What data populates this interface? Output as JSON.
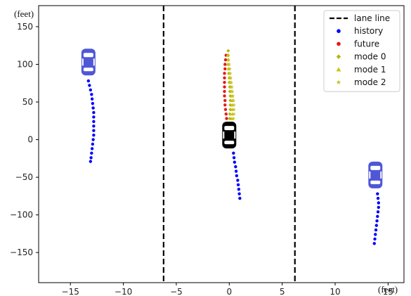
{
  "chart_data": {
    "type": "scatter",
    "units": {
      "x": "(feet)",
      "y": "(feet)"
    },
    "xlim": [
      -18,
      16.5
    ],
    "ylim": [
      -190,
      178
    ],
    "x_ticks": [
      -15,
      -10,
      -5,
      0,
      5,
      10,
      15
    ],
    "y_ticks": [
      -150,
      -100,
      -50,
      0,
      50,
      100,
      150
    ],
    "grid": false,
    "legend_position": "top-right",
    "lane_lines": {
      "name": "lane line",
      "x": [
        -6.2,
        6.2
      ],
      "color": "#000000"
    },
    "series": [
      {
        "name": "history",
        "marker": "circle",
        "color": "#0000ff",
        "points": [
          {
            "x": -13.3,
            "y": 78
          },
          {
            "x": -13.2,
            "y": 72
          },
          {
            "x": -13.1,
            "y": 66
          },
          {
            "x": -13.0,
            "y": 60
          },
          {
            "x": -12.95,
            "y": 54
          },
          {
            "x": -12.9,
            "y": 48
          },
          {
            "x": -12.85,
            "y": 42
          },
          {
            "x": -12.8,
            "y": 36
          },
          {
            "x": -12.8,
            "y": 30
          },
          {
            "x": -12.8,
            "y": 24
          },
          {
            "x": -12.8,
            "y": 18
          },
          {
            "x": -12.8,
            "y": 12
          },
          {
            "x": -12.8,
            "y": 6
          },
          {
            "x": -12.85,
            "y": 0
          },
          {
            "x": -12.9,
            "y": -6
          },
          {
            "x": -12.95,
            "y": -12
          },
          {
            "x": -13.0,
            "y": -18
          },
          {
            "x": -13.05,
            "y": -24
          },
          {
            "x": -13.1,
            "y": -29
          },
          {
            "x": 0.4,
            "y": -18
          },
          {
            "x": 0.45,
            "y": -24
          },
          {
            "x": 0.5,
            "y": -30
          },
          {
            "x": 0.6,
            "y": -36
          },
          {
            "x": 0.65,
            "y": -42
          },
          {
            "x": 0.7,
            "y": -48
          },
          {
            "x": 0.8,
            "y": -54
          },
          {
            "x": 0.85,
            "y": -60
          },
          {
            "x": 0.9,
            "y": -66
          },
          {
            "x": 0.95,
            "y": -72
          },
          {
            "x": 1.0,
            "y": -78
          },
          {
            "x": 14.0,
            "y": -72
          },
          {
            "x": 14.05,
            "y": -78
          },
          {
            "x": 14.1,
            "y": -84
          },
          {
            "x": 14.1,
            "y": -90
          },
          {
            "x": 14.05,
            "y": -96
          },
          {
            "x": 14.0,
            "y": -102
          },
          {
            "x": 13.95,
            "y": -108
          },
          {
            "x": 13.9,
            "y": -114
          },
          {
            "x": 13.85,
            "y": -120
          },
          {
            "x": 13.8,
            "y": -126
          },
          {
            "x": 13.75,
            "y": -132
          },
          {
            "x": 13.7,
            "y": -138
          }
        ]
      },
      {
        "name": "future",
        "marker": "circle",
        "color": "#e31a1c",
        "points": [
          {
            "x": -0.2,
            "y": 22
          },
          {
            "x": -0.25,
            "y": 28
          },
          {
            "x": -0.3,
            "y": 34
          },
          {
            "x": -0.35,
            "y": 40
          },
          {
            "x": -0.4,
            "y": 46
          },
          {
            "x": -0.4,
            "y": 52
          },
          {
            "x": -0.45,
            "y": 58
          },
          {
            "x": -0.45,
            "y": 64
          },
          {
            "x": -0.45,
            "y": 70
          },
          {
            "x": -0.45,
            "y": 76
          },
          {
            "x": -0.45,
            "y": 82
          },
          {
            "x": -0.45,
            "y": 88
          },
          {
            "x": -0.4,
            "y": 94
          },
          {
            "x": -0.4,
            "y": 100
          },
          {
            "x": -0.35,
            "y": 106
          },
          {
            "x": -0.3,
            "y": 112
          }
        ]
      },
      {
        "name": "mode 0",
        "marker": "diamond",
        "color": "#b5b600",
        "points": [
          {
            "x": 0.0,
            "y": 22
          },
          {
            "x": 0.05,
            "y": 28
          },
          {
            "x": 0.05,
            "y": 34
          },
          {
            "x": 0.1,
            "y": 40
          },
          {
            "x": 0.1,
            "y": 46
          },
          {
            "x": 0.1,
            "y": 52
          },
          {
            "x": 0.1,
            "y": 58
          },
          {
            "x": 0.05,
            "y": 64
          },
          {
            "x": 0.05,
            "y": 70
          },
          {
            "x": 0.0,
            "y": 76
          },
          {
            "x": 0.0,
            "y": 82
          },
          {
            "x": -0.05,
            "y": 88
          },
          {
            "x": -0.05,
            "y": 94
          },
          {
            "x": -0.1,
            "y": 100
          },
          {
            "x": -0.1,
            "y": 106
          },
          {
            "x": -0.1,
            "y": 112
          },
          {
            "x": -0.1,
            "y": 118
          }
        ]
      },
      {
        "name": "mode 1",
        "marker": "triangle",
        "color": "#c8c400",
        "points": [
          {
            "x": 0.2,
            "y": 22
          },
          {
            "x": 0.25,
            "y": 28
          },
          {
            "x": 0.3,
            "y": 34
          },
          {
            "x": 0.3,
            "y": 40
          },
          {
            "x": 0.3,
            "y": 46
          },
          {
            "x": 0.3,
            "y": 52
          },
          {
            "x": 0.25,
            "y": 58
          },
          {
            "x": 0.2,
            "y": 64
          },
          {
            "x": 0.15,
            "y": 70
          },
          {
            "x": 0.1,
            "y": 76
          },
          {
            "x": 0.05,
            "y": 82
          },
          {
            "x": 0.0,
            "y": 88
          },
          {
            "x": -0.05,
            "y": 94
          },
          {
            "x": -0.1,
            "y": 100
          },
          {
            "x": -0.1,
            "y": 106
          },
          {
            "x": -0.15,
            "y": 112
          }
        ]
      },
      {
        "name": "mode 2",
        "marker": "star",
        "color": "#c6c33a",
        "points": [
          {
            "x": 0.35,
            "y": 22
          },
          {
            "x": 0.4,
            "y": 28
          },
          {
            "x": 0.45,
            "y": 34
          },
          {
            "x": 0.45,
            "y": 40
          },
          {
            "x": 0.45,
            "y": 46
          },
          {
            "x": 0.4,
            "y": 52
          },
          {
            "x": 0.35,
            "y": 58
          },
          {
            "x": 0.3,
            "y": 64
          },
          {
            "x": 0.25,
            "y": 70
          },
          {
            "x": 0.2,
            "y": 76
          },
          {
            "x": 0.15,
            "y": 82
          },
          {
            "x": 0.1,
            "y": 88
          },
          {
            "x": 0.05,
            "y": 94
          },
          {
            "x": 0.0,
            "y": 100
          }
        ]
      }
    ],
    "vehicles": [
      {
        "x": -13.3,
        "y": 103,
        "color": "#4f57d6"
      },
      {
        "x": 0.0,
        "y": 6,
        "color": "#000000"
      },
      {
        "x": 13.8,
        "y": -47,
        "color": "#4f57d6"
      }
    ]
  }
}
